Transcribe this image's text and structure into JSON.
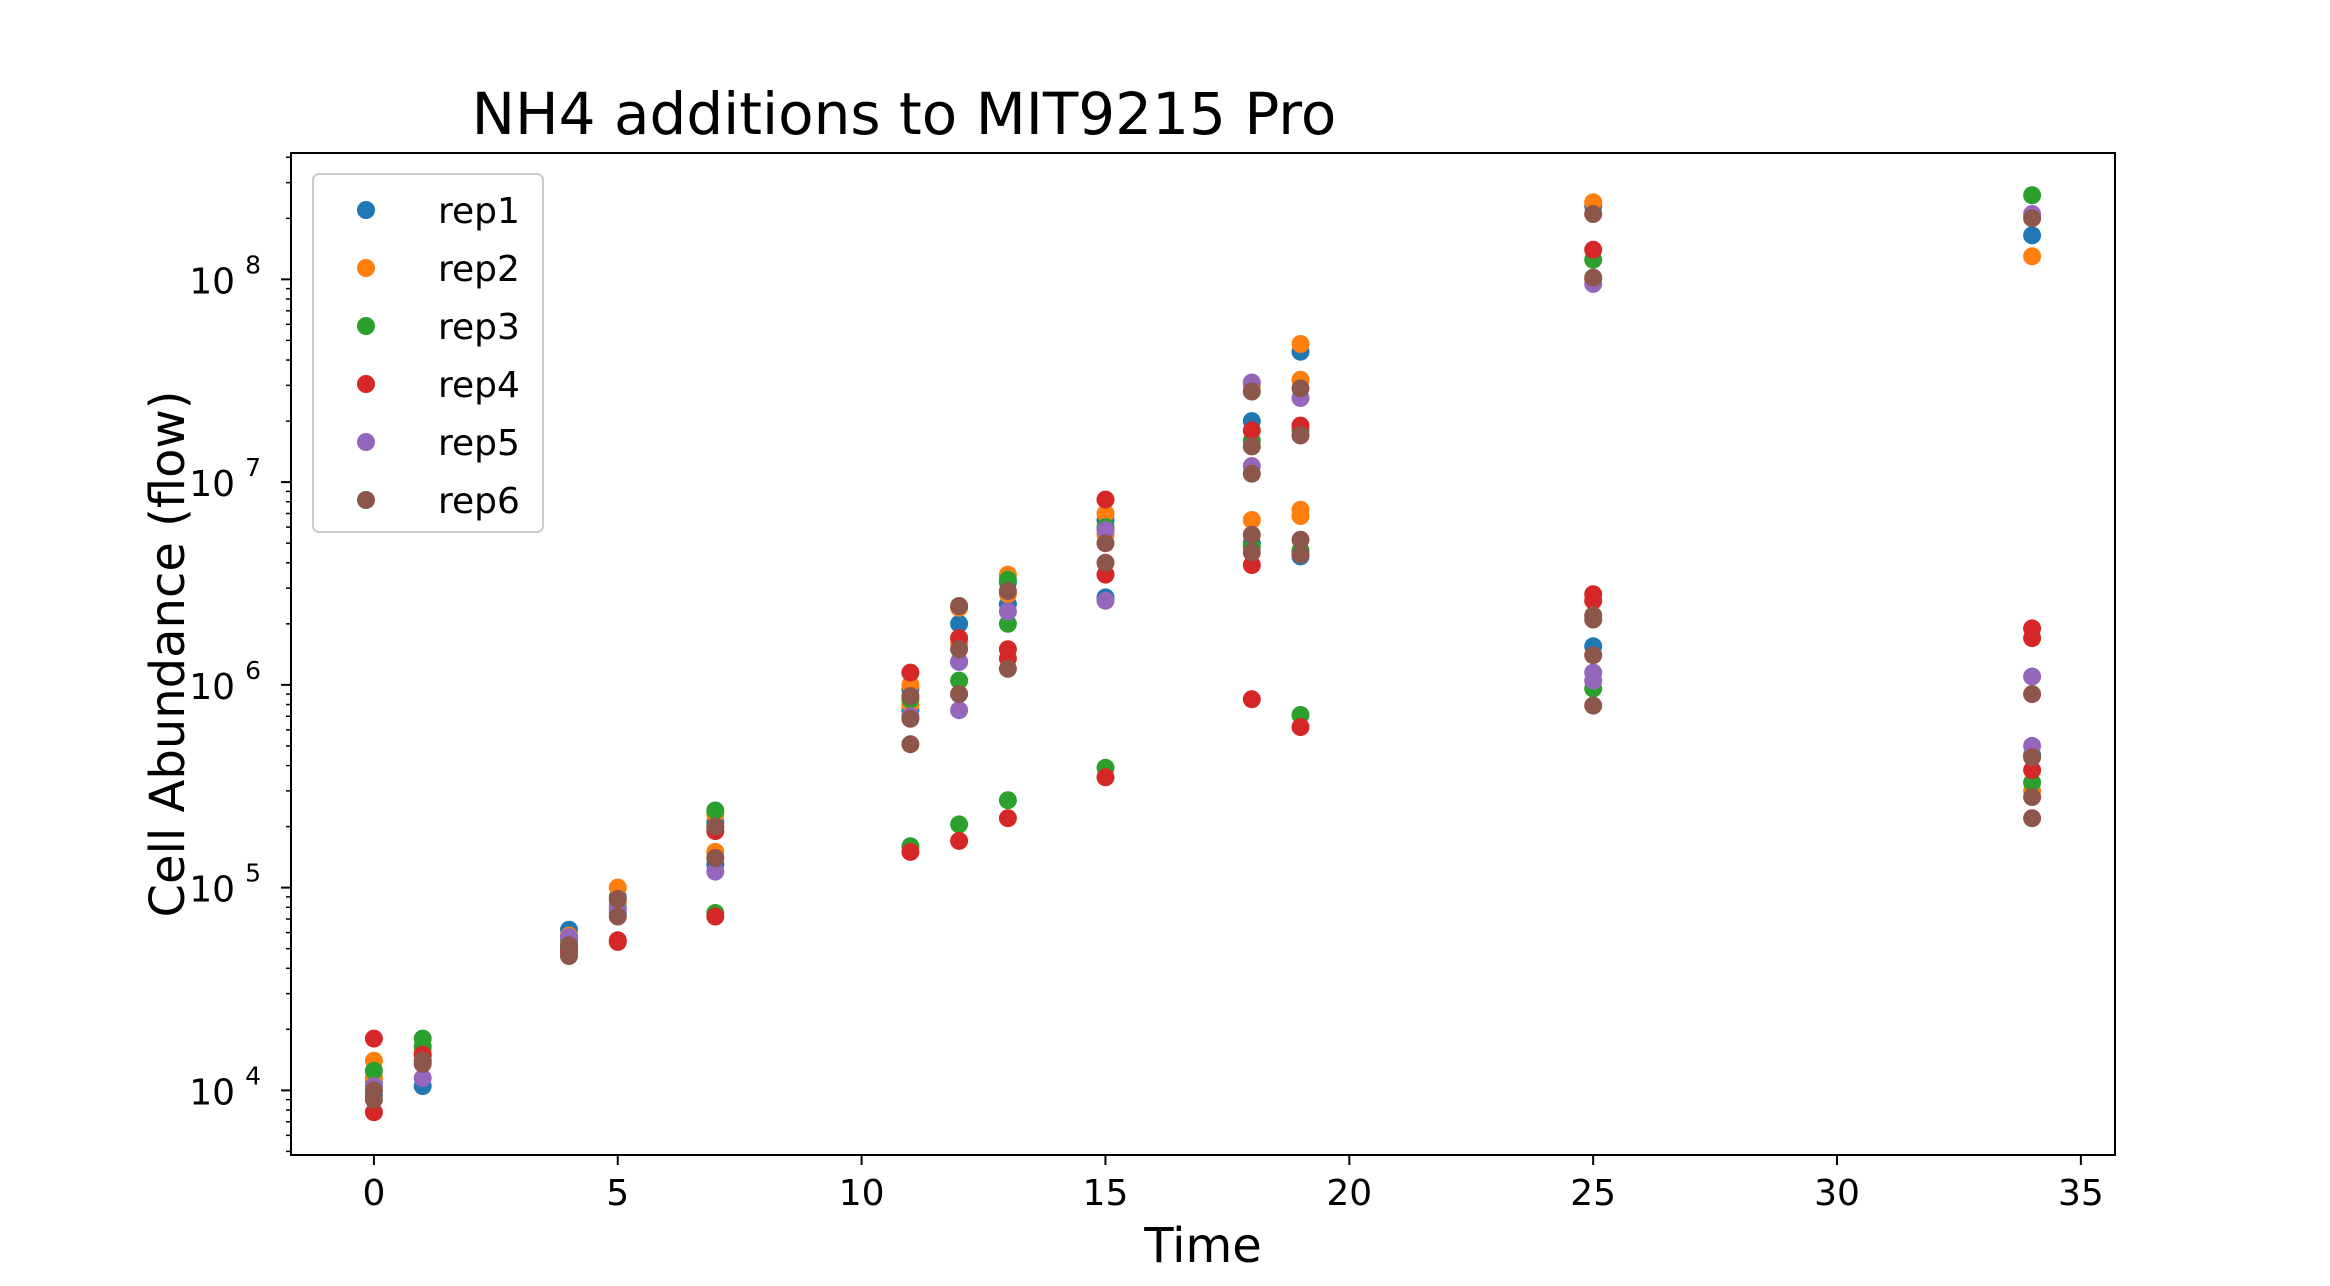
{
  "chart_data": {
    "type": "scatter",
    "title": "NH4 additions to MIT9215 Pro",
    "xlabel": "Time",
    "ylabel": "Cell Abundance (flow)",
    "yscale": "log",
    "xlim": [
      -1.7,
      35.7
    ],
    "ylim": [
      4800,
      420000000
    ],
    "xticks": [
      0,
      5,
      10,
      15,
      20,
      25,
      30,
      35
    ],
    "yticks": [
      {
        "value": 10000,
        "base": "10",
        "exp": "4"
      },
      {
        "value": 100000,
        "base": "10",
        "exp": "5"
      },
      {
        "value": 1000000,
        "base": "10",
        "exp": "6"
      },
      {
        "value": 10000000,
        "base": "10",
        "exp": "7"
      },
      {
        "value": 100000000,
        "base": "10",
        "exp": "8"
      }
    ],
    "legend_position": "upper-left",
    "grid": false,
    "series": [
      {
        "name": "rep1",
        "color": "#1f77b4",
        "points": [
          [
            0,
            11000
          ],
          [
            0,
            9500
          ],
          [
            1,
            10500
          ],
          [
            1,
            15000
          ],
          [
            4,
            62000
          ],
          [
            4,
            50000
          ],
          [
            5,
            90000
          ],
          [
            5,
            75000
          ],
          [
            7,
            210000
          ],
          [
            7,
            130000
          ],
          [
            11,
            950000
          ],
          [
            11,
            750000
          ],
          [
            12,
            2000000
          ],
          [
            12,
            1300000
          ],
          [
            13,
            3200000
          ],
          [
            13,
            2500000
          ],
          [
            15,
            6500000
          ],
          [
            15,
            2700000
          ],
          [
            18,
            20000000
          ],
          [
            18,
            5000000
          ],
          [
            19,
            44000000
          ],
          [
            19,
            4300000
          ],
          [
            25,
            230000000
          ],
          [
            25,
            1550000
          ],
          [
            34,
            165000000
          ],
          [
            34,
            450000
          ]
        ]
      },
      {
        "name": "rep2",
        "color": "#ff7f0e",
        "points": [
          [
            0,
            14000
          ],
          [
            0,
            11500
          ],
          [
            1,
            16000
          ],
          [
            1,
            14000
          ],
          [
            4,
            58000
          ],
          [
            4,
            52000
          ],
          [
            5,
            100000
          ],
          [
            5,
            85000
          ],
          [
            7,
            230000
          ],
          [
            7,
            150000
          ],
          [
            11,
            1000000
          ],
          [
            11,
            800000
          ],
          [
            12,
            2400000
          ],
          [
            12,
            1600000
          ],
          [
            13,
            3500000
          ],
          [
            13,
            2800000
          ],
          [
            15,
            7000000
          ],
          [
            15,
            5500000
          ],
          [
            18,
            30000000
          ],
          [
            18,
            6500000
          ],
          [
            19,
            48000000
          ],
          [
            19,
            32000000
          ],
          [
            19,
            7300000
          ],
          [
            19,
            6800000
          ],
          [
            25,
            240000000
          ],
          [
            25,
            100000000
          ],
          [
            34,
            130000000
          ],
          [
            34,
            300000
          ]
        ]
      },
      {
        "name": "rep3",
        "color": "#2ca02c",
        "points": [
          [
            0,
            12500
          ],
          [
            1,
            18000
          ],
          [
            1,
            16500
          ],
          [
            4,
            55000
          ],
          [
            5,
            80000
          ],
          [
            7,
            240000
          ],
          [
            7,
            75000
          ],
          [
            11,
            160000
          ],
          [
            11,
            850000
          ],
          [
            12,
            1050000
          ],
          [
            12,
            205000
          ],
          [
            13,
            3300000
          ],
          [
            13,
            2000000
          ],
          [
            13,
            270000
          ],
          [
            15,
            6000000
          ],
          [
            15,
            390000
          ],
          [
            18,
            16000000
          ],
          [
            18,
            4800000
          ],
          [
            19,
            18000000
          ],
          [
            19,
            4600000
          ],
          [
            19,
            710000
          ],
          [
            25,
            125000000
          ],
          [
            25,
            960000
          ],
          [
            34,
            260000000
          ],
          [
            34,
            330000
          ]
        ]
      },
      {
        "name": "rep4",
        "color": "#d62728",
        "points": [
          [
            0,
            18000
          ],
          [
            0,
            7800
          ],
          [
            1,
            15000
          ],
          [
            4,
            48000
          ],
          [
            5,
            55000
          ],
          [
            5,
            54000
          ],
          [
            7,
            190000
          ],
          [
            7,
            72000
          ],
          [
            11,
            1150000
          ],
          [
            11,
            150000
          ],
          [
            12,
            1700000
          ],
          [
            12,
            170000
          ],
          [
            13,
            1500000
          ],
          [
            13,
            1350000
          ],
          [
            13,
            220000
          ],
          [
            15,
            8200000
          ],
          [
            15,
            3500000
          ],
          [
            15,
            350000
          ],
          [
            18,
            18000000
          ],
          [
            18,
            3900000
          ],
          [
            18,
            850000
          ],
          [
            19,
            19000000
          ],
          [
            19,
            620000
          ],
          [
            25,
            140000000
          ],
          [
            25,
            2800000
          ],
          [
            25,
            2600000
          ],
          [
            34,
            1900000
          ],
          [
            34,
            1700000
          ],
          [
            34,
            380000
          ]
        ]
      },
      {
        "name": "rep5",
        "color": "#9467bd",
        "points": [
          [
            0,
            10500
          ],
          [
            1,
            11500
          ],
          [
            4,
            57000
          ],
          [
            5,
            78000
          ],
          [
            7,
            120000
          ],
          [
            11,
            700000
          ],
          [
            12,
            1300000
          ],
          [
            12,
            750000
          ],
          [
            13,
            2300000
          ],
          [
            15,
            5800000
          ],
          [
            15,
            2600000
          ],
          [
            18,
            31000000
          ],
          [
            18,
            12000000
          ],
          [
            19,
            26000000
          ],
          [
            19,
            17000000
          ],
          [
            25,
            95000000
          ],
          [
            25,
            1150000
          ],
          [
            25,
            1050000
          ],
          [
            34,
            210000000
          ],
          [
            34,
            1100000
          ],
          [
            34,
            500000
          ]
        ]
      },
      {
        "name": "rep6",
        "color": "#8c564b",
        "points": [
          [
            0,
            10000
          ],
          [
            0,
            9000
          ],
          [
            1,
            14000
          ],
          [
            1,
            13500
          ],
          [
            4,
            52000
          ],
          [
            4,
            46000
          ],
          [
            5,
            88000
          ],
          [
            5,
            72000
          ],
          [
            7,
            200000
          ],
          [
            7,
            140000
          ],
          [
            11,
            880000
          ],
          [
            11,
            680000
          ],
          [
            11,
            510000
          ],
          [
            12,
            2450000
          ],
          [
            12,
            1500000
          ],
          [
            12,
            900000
          ],
          [
            13,
            2900000
          ],
          [
            13,
            1200000
          ],
          [
            15,
            5000000
          ],
          [
            15,
            4000000
          ],
          [
            18,
            28000000
          ],
          [
            18,
            15000000
          ],
          [
            18,
            11000000
          ],
          [
            18,
            5500000
          ],
          [
            18,
            4500000
          ],
          [
            19,
            29000000
          ],
          [
            19,
            17000000
          ],
          [
            19,
            5200000
          ],
          [
            19,
            4400000
          ],
          [
            25,
            210000000
          ],
          [
            25,
            102000000
          ],
          [
            25,
            2200000
          ],
          [
            25,
            2100000
          ],
          [
            25,
            1400000
          ],
          [
            25,
            790000
          ],
          [
            34,
            200000000
          ],
          [
            34,
            900000
          ],
          [
            34,
            440000
          ],
          [
            34,
            280000
          ],
          [
            34,
            220000
          ]
        ]
      }
    ]
  }
}
